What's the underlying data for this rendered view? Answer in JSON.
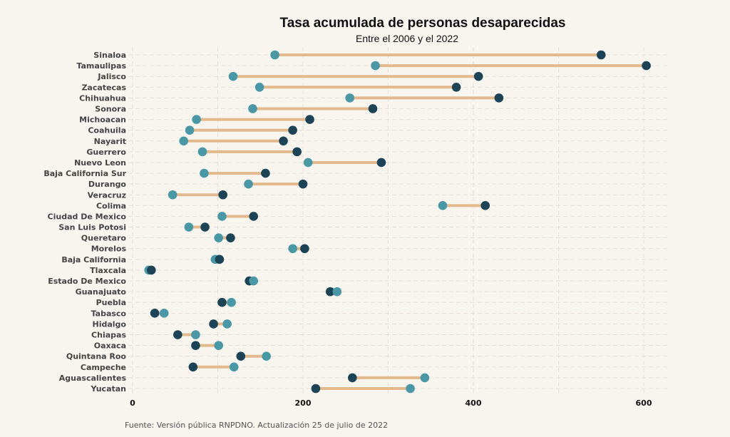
{
  "chart_data": {
    "type": "dumbbell",
    "title": "Tasa acumulada de personas desaparecidas",
    "subtitle": "Entre el 2006 y el 2022",
    "caption": "Fuente: Versión pública RNPDNO. Actualización 25 de julio de 2022",
    "x_ticks": [
      0,
      200,
      400,
      600
    ],
    "xlim": [
      0,
      630
    ],
    "colors": {
      "light_point": "#4a97a6",
      "dark_point": "#1d4456",
      "segment": "#e2b98d"
    },
    "rows": [
      {
        "state": "Sinaloa",
        "light": 167,
        "dark": 550
      },
      {
        "state": "Tamaulipas",
        "light": 285,
        "dark": 603
      },
      {
        "state": "Jalisco",
        "light": 118,
        "dark": 406
      },
      {
        "state": "Zacatecas",
        "light": 149,
        "dark": 380
      },
      {
        "state": "Chihuahua",
        "light": 255,
        "dark": 430
      },
      {
        "state": "Sonora",
        "light": 141,
        "dark": 282
      },
      {
        "state": "Michoacan",
        "light": 75,
        "dark": 208
      },
      {
        "state": "Coahuila",
        "light": 67,
        "dark": 188
      },
      {
        "state": "Nayarit",
        "light": 60,
        "dark": 177
      },
      {
        "state": "Guerrero",
        "light": 82,
        "dark": 193
      },
      {
        "state": "Nuevo Leon",
        "light": 206,
        "dark": 292
      },
      {
        "state": "Baja California Sur",
        "light": 84,
        "dark": 156
      },
      {
        "state": "Durango",
        "light": 136,
        "dark": 200
      },
      {
        "state": "Veracruz",
        "light": 47,
        "dark": 106
      },
      {
        "state": "Colima",
        "light": 364,
        "dark": 414
      },
      {
        "state": "Ciudad De Mexico",
        "light": 105,
        "dark": 142
      },
      {
        "state": "San Luis Potosi",
        "light": 66,
        "dark": 85
      },
      {
        "state": "Queretaro",
        "light": 101,
        "dark": 115
      },
      {
        "state": "Morelos",
        "light": 188,
        "dark": 202
      },
      {
        "state": "Baja California",
        "light": 97,
        "dark": 102
      },
      {
        "state": "Tlaxcala",
        "light": 19,
        "dark": 22
      },
      {
        "state": "Estado De Mexico",
        "light": 142,
        "dark": 137
      },
      {
        "state": "Guanajuato",
        "light": 240,
        "dark": 232
      },
      {
        "state": "Puebla",
        "light": 116,
        "dark": 105
      },
      {
        "state": "Tabasco",
        "light": 37,
        "dark": 26
      },
      {
        "state": "Hidalgo",
        "light": 111,
        "dark": 95
      },
      {
        "state": "Chiapas",
        "light": 74,
        "dark": 53
      },
      {
        "state": "Oaxaca",
        "light": 101,
        "dark": 74
      },
      {
        "state": "Quintana Roo",
        "light": 157,
        "dark": 127
      },
      {
        "state": "Campeche",
        "light": 119,
        "dark": 71
      },
      {
        "state": "Aguascalientes",
        "light": 343,
        "dark": 258
      },
      {
        "state": "Yucatan",
        "light": 326,
        "dark": 215
      }
    ]
  }
}
